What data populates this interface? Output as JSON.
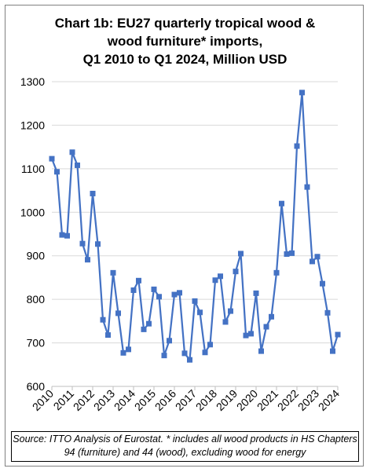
{
  "chart_data": {
    "type": "line",
    "title_lines": [
      "Chart 1b: EU27 quarterly tropical wood &",
      "wood furniture* imports,",
      "Q1 2010 to Q1 2024, Million USD"
    ],
    "xlabel": "",
    "ylabel": "",
    "ylim": [
      600,
      1300
    ],
    "yticks": [
      600,
      700,
      800,
      900,
      1000,
      1100,
      1200,
      1300
    ],
    "year_labels": [
      "2010",
      "2011",
      "2012",
      "2013",
      "2014",
      "2015",
      "2016",
      "2017",
      "2018",
      "2019",
      "2020",
      "2021",
      "2022",
      "2023",
      "2024"
    ],
    "grid": true,
    "legend": "none",
    "series": [
      {
        "color": "#4472C4",
        "quarters": [
          "2010Q1",
          "2010Q2",
          "2010Q3",
          "2010Q4",
          "2011Q1",
          "2011Q2",
          "2011Q3",
          "2011Q4",
          "2012Q1",
          "2012Q2",
          "2012Q3",
          "2012Q4",
          "2013Q1",
          "2013Q2",
          "2013Q3",
          "2013Q4",
          "2014Q1",
          "2014Q2",
          "2014Q3",
          "2014Q4",
          "2015Q1",
          "2015Q2",
          "2015Q3",
          "2015Q4",
          "2016Q1",
          "2016Q2",
          "2016Q3",
          "2016Q4",
          "2017Q1",
          "2017Q2",
          "2017Q3",
          "2017Q4",
          "2018Q1",
          "2018Q2",
          "2018Q3",
          "2018Q4",
          "2019Q1",
          "2019Q2",
          "2019Q3",
          "2019Q4",
          "2020Q1",
          "2020Q2",
          "2020Q3",
          "2020Q4",
          "2021Q1",
          "2021Q2",
          "2021Q3",
          "2021Q4",
          "2022Q1",
          "2022Q2",
          "2022Q3",
          "2022Q4",
          "2023Q1",
          "2023Q2",
          "2023Q3",
          "2023Q4",
          "2024Q1"
        ],
        "values": [
          1123,
          1093,
          948,
          946,
          1138,
          1108,
          928,
          891,
          1043,
          927,
          753,
          718,
          861,
          768,
          677,
          685,
          821,
          843,
          731,
          744,
          823,
          806,
          671,
          705,
          811,
          815,
          676,
          661,
          796,
          770,
          678,
          696,
          844,
          853,
          748,
          773,
          864,
          905,
          717,
          721,
          814,
          681,
          737,
          760,
          861,
          1020,
          904,
          906,
          1152,
          1275,
          1058,
          887,
          898,
          836,
          769,
          681,
          719
        ]
      }
    ],
    "source_lines": [
      "Source: ITTO Analysis of Eurostat. * includes all wood products in HS Chapters",
      "94 (furniture) and 44 (wood), excluding wood for energy"
    ]
  }
}
